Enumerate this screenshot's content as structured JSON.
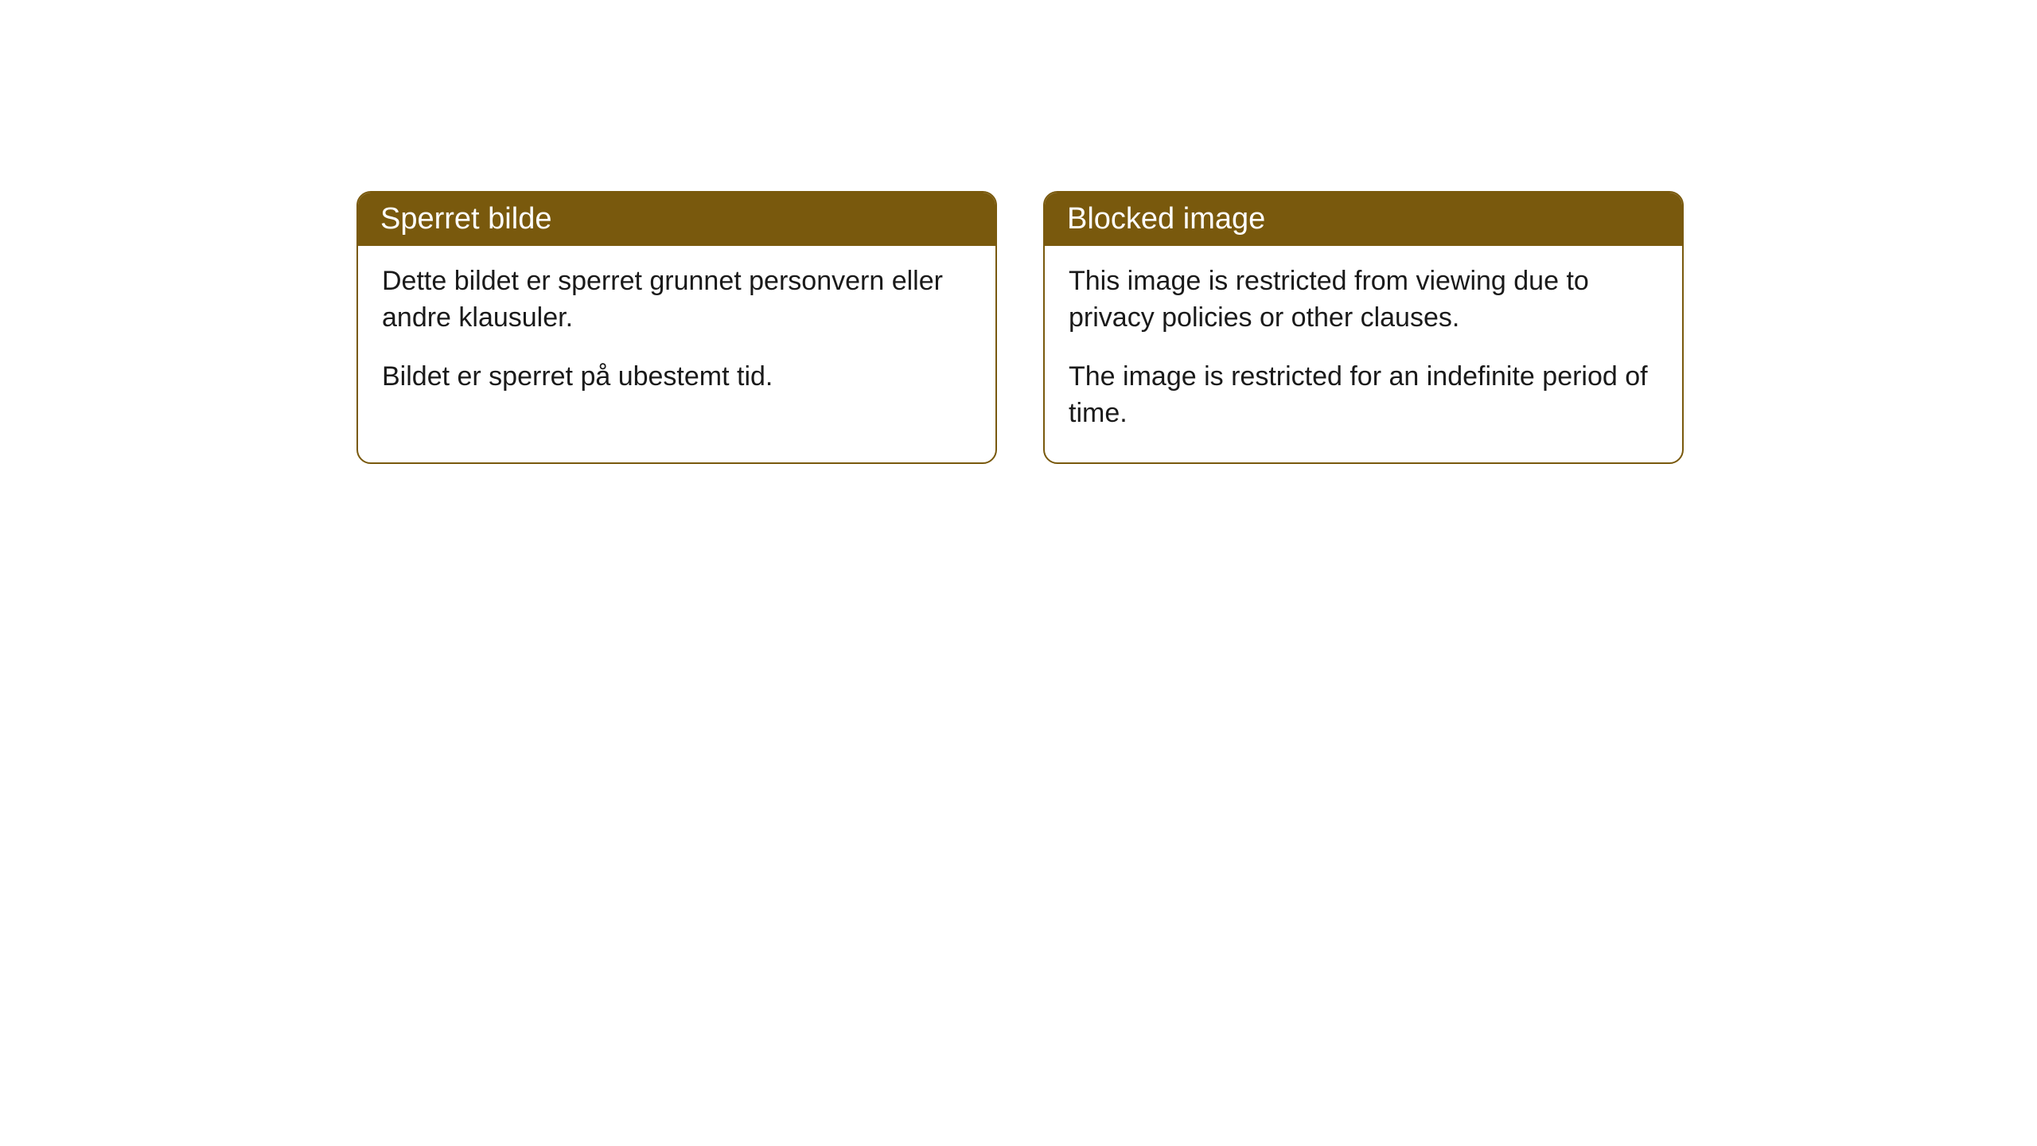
{
  "cards": [
    {
      "title": "Sperret bilde",
      "paragraph1": "Dette bildet er sperret grunnet personvern eller andre klausuler.",
      "paragraph2": "Bildet er sperret på ubestemt tid."
    },
    {
      "title": "Blocked image",
      "paragraph1": "This image is restricted from viewing due to privacy policies or other clauses.",
      "paragraph2": "The image is restricted for an indefinite period of time."
    }
  ],
  "style": {
    "header_bg_color": "#79590d",
    "header_text_color": "#ffffff",
    "border_color": "#79590d",
    "body_bg_color": "#ffffff",
    "body_text_color": "#1a1a1a",
    "border_radius": 18,
    "title_fontsize": 38,
    "body_fontsize": 34
  }
}
